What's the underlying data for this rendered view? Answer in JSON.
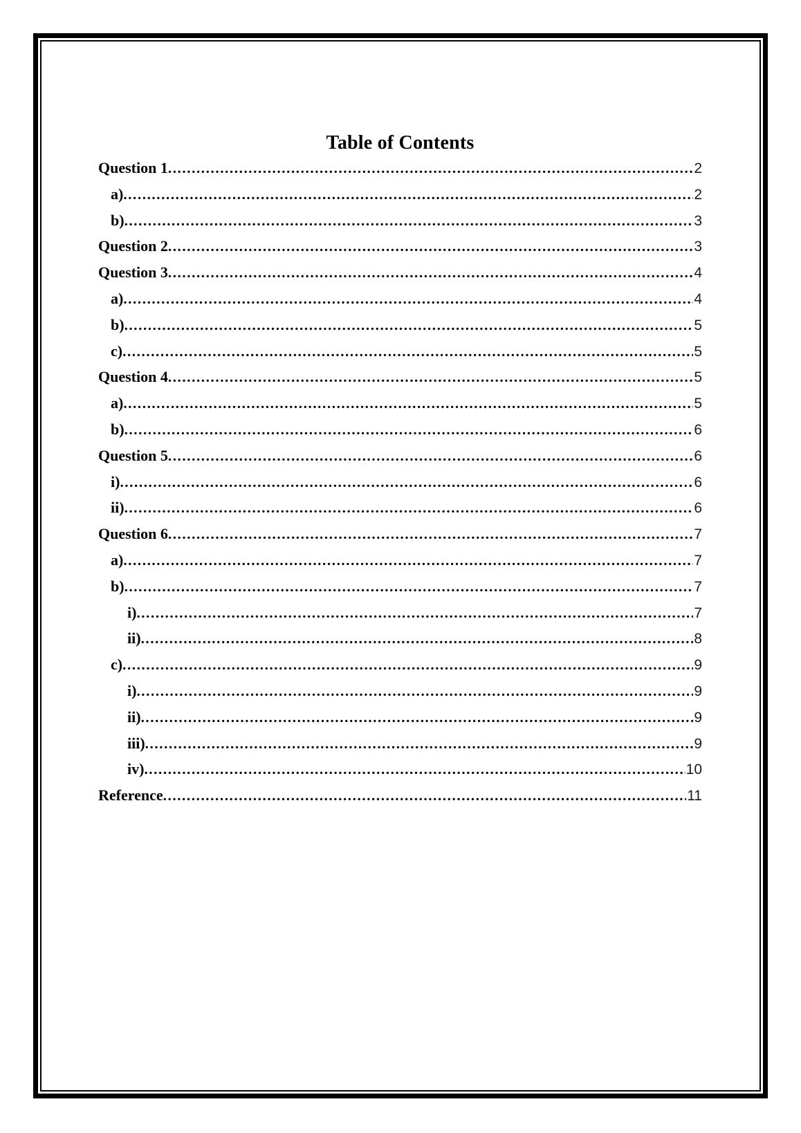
{
  "document": {
    "title": "Table of Contents",
    "toc": {
      "entries": [
        {
          "label": "Question 1",
          "page": "2",
          "level": 0
        },
        {
          "label": "a)",
          "page": "2",
          "level": 1
        },
        {
          "label": "b)",
          "page": "3",
          "level": 1
        },
        {
          "label": "Question 2",
          "page": "3",
          "level": 0
        },
        {
          "label": "Question 3",
          "page": "4",
          "level": 0
        },
        {
          "label": "a)",
          "page": "4",
          "level": 1
        },
        {
          "label": "b)",
          "page": "5",
          "level": 1
        },
        {
          "label": "c)",
          "page": "5",
          "level": 1
        },
        {
          "label": "Question 4",
          "page": "5",
          "level": 0
        },
        {
          "label": "a)",
          "page": "5",
          "level": 1
        },
        {
          "label": "b)",
          "page": "6",
          "level": 1
        },
        {
          "label": "Question 5",
          "page": "6",
          "level": 0
        },
        {
          "label": "i)",
          "page": "6",
          "level": 1
        },
        {
          "label": "ii)",
          "page": "6",
          "level": 1
        },
        {
          "label": "Question 6",
          "page": "7",
          "level": 0
        },
        {
          "label": "a)",
          "page": "7",
          "level": 1
        },
        {
          "label": "b)",
          "page": "7",
          "level": 1
        },
        {
          "label": "i)",
          "page": "7",
          "level": 2
        },
        {
          "label": "ii)",
          "page": "8",
          "level": 2
        },
        {
          "label": "c)",
          "page": "9",
          "level": 1
        },
        {
          "label": "i)",
          "page": "9",
          "level": 2
        },
        {
          "label": "ii)",
          "page": "9",
          "level": 2
        },
        {
          "label": "iii)",
          "page": "9",
          "level": 2
        },
        {
          "label": "iv)",
          "page": "10",
          "level": 2
        },
        {
          "label": "Reference",
          "page": "11",
          "level": 0
        }
      ]
    },
    "colors": {
      "border": "#000000",
      "text": "#000000",
      "page_number": "#1a1a1a",
      "background": "#ffffff"
    }
  }
}
